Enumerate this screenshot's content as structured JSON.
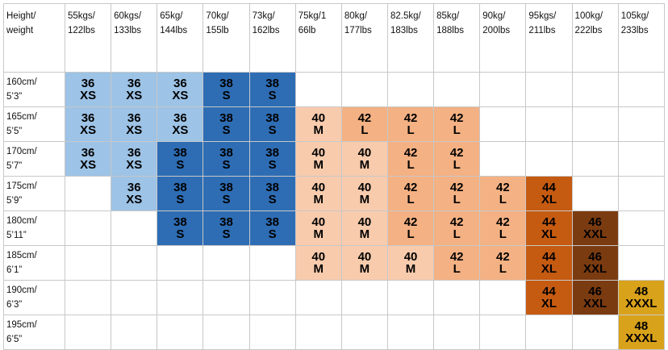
{
  "table": {
    "header": [
      "Height/\nweight",
      "55kgs/\n122lbs",
      "60kgs/\n133lbs",
      "65kg/\n144lbs",
      "70kg/\n155lb",
      "73kg/\n162lbs",
      "75kg/1\n66lb",
      "80kg/\n177lbs",
      "82.5kg/\n183lbs",
      "85kg/\n188lbs",
      "90kg/\n200lbs",
      "95kgs/\n211lbs",
      "100kg/\n222lbs",
      "105kg/\n233lbs"
    ],
    "colors": {
      "XS": "#9dc3e6",
      "S": "#2e6db4",
      "M": "#f8cbad",
      "L": "#f4b183",
      "XL": "#c55a11",
      "XXL": "#7b3b10",
      "XXXL": "#d9a21b"
    },
    "rows": [
      {
        "height": "160cm/\n5’3”",
        "cells": [
          {
            "size": 36,
            "label": "XS"
          },
          {
            "size": 36,
            "label": "XS"
          },
          {
            "size": 36,
            "label": "XS"
          },
          {
            "size": 38,
            "label": "S"
          },
          {
            "size": 38,
            "label": "S"
          },
          null,
          null,
          null,
          null,
          null,
          null,
          null,
          null
        ]
      },
      {
        "height": "165cm/\n5’5”",
        "cells": [
          {
            "size": 36,
            "label": "XS"
          },
          {
            "size": 36,
            "label": "XS"
          },
          {
            "size": 36,
            "label": "XS"
          },
          {
            "size": 38,
            "label": "S"
          },
          {
            "size": 38,
            "label": "S"
          },
          {
            "size": 40,
            "label": "M"
          },
          {
            "size": 42,
            "label": "L"
          },
          {
            "size": 42,
            "label": "L"
          },
          {
            "size": 42,
            "label": "L"
          },
          null,
          null,
          null,
          null
        ]
      },
      {
        "height": "170cm/\n5’7”",
        "cells": [
          {
            "size": 36,
            "label": "XS"
          },
          {
            "size": 36,
            "label": "XS"
          },
          {
            "size": 38,
            "label": "S"
          },
          {
            "size": 38,
            "label": "S"
          },
          {
            "size": 38,
            "label": "S"
          },
          {
            "size": 40,
            "label": "M"
          },
          {
            "size": 40,
            "label": "M"
          },
          {
            "size": 42,
            "label": "L"
          },
          {
            "size": 42,
            "label": "L"
          },
          null,
          null,
          null,
          null
        ]
      },
      {
        "height": "175cm/\n5’9”",
        "cells": [
          null,
          {
            "size": 36,
            "label": "XS"
          },
          {
            "size": 38,
            "label": "S"
          },
          {
            "size": 38,
            "label": "S"
          },
          {
            "size": 38,
            "label": "S"
          },
          {
            "size": 40,
            "label": "M"
          },
          {
            "size": 40,
            "label": "M"
          },
          {
            "size": 42,
            "label": "L"
          },
          {
            "size": 42,
            "label": "L"
          },
          {
            "size": 42,
            "label": "L"
          },
          {
            "size": 44,
            "label": "XL"
          },
          null,
          null
        ]
      },
      {
        "height": "180cm/\n5’11”",
        "cells": [
          null,
          null,
          {
            "size": 38,
            "label": "S"
          },
          {
            "size": 38,
            "label": "S"
          },
          {
            "size": 38,
            "label": "S"
          },
          {
            "size": 40,
            "label": "M"
          },
          {
            "size": 40,
            "label": "M"
          },
          {
            "size": 42,
            "label": "L"
          },
          {
            "size": 42,
            "label": "L"
          },
          {
            "size": 42,
            "label": "L"
          },
          {
            "size": 44,
            "label": "XL"
          },
          {
            "size": 46,
            "label": "XXL"
          },
          null
        ]
      },
      {
        "height": "185cm/\n6’1”",
        "cells": [
          null,
          null,
          null,
          null,
          null,
          {
            "size": 40,
            "label": "M"
          },
          {
            "size": 40,
            "label": "M"
          },
          {
            "size": 40,
            "label": "M"
          },
          {
            "size": 42,
            "label": "L"
          },
          {
            "size": 42,
            "label": "L"
          },
          {
            "size": 44,
            "label": "XL"
          },
          {
            "size": 46,
            "label": "XXL"
          },
          null
        ]
      },
      {
        "height": "190cm/\n6’3”",
        "cells": [
          null,
          null,
          null,
          null,
          null,
          null,
          null,
          null,
          null,
          null,
          {
            "size": 44,
            "label": "XL"
          },
          {
            "size": 46,
            "label": "XXL"
          },
          {
            "size": 48,
            "label": "XXXL"
          }
        ]
      },
      {
        "height": "195cm/\n6’5”",
        "cells": [
          null,
          null,
          null,
          null,
          null,
          null,
          null,
          null,
          null,
          null,
          null,
          null,
          {
            "size": 48,
            "label": "XXXL"
          }
        ]
      }
    ]
  }
}
